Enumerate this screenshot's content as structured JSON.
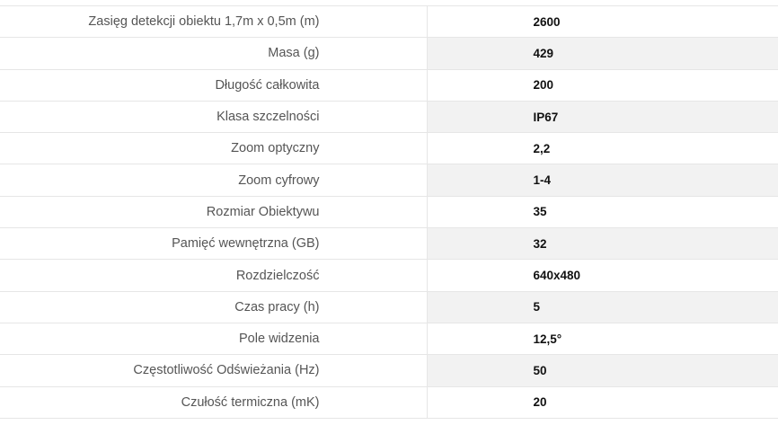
{
  "specs": [
    {
      "label": "Zasięg detekcji obiektu 1,7m x 0,5m (m)",
      "value": "2600"
    },
    {
      "label": "Masa (g)",
      "value": "429"
    },
    {
      "label": "Długość całkowita",
      "value": "200"
    },
    {
      "label": "Klasa szczelności",
      "value": "IP67"
    },
    {
      "label": "Zoom optyczny",
      "value": "2,2"
    },
    {
      "label": "Zoom cyfrowy",
      "value": "1-4"
    },
    {
      "label": "Rozmiar Obiektywu",
      "value": "35"
    },
    {
      "label": "Pamięć wewnętrzna (GB)",
      "value": "32"
    },
    {
      "label": "Rozdzielczość",
      "value": "640x480"
    },
    {
      "label": "Czas pracy (h)",
      "value": "5"
    },
    {
      "label": "Pole widzenia",
      "value": "12,5°"
    },
    {
      "label": "Częstotliwość Odświeżania (Hz)",
      "value": "50"
    },
    {
      "label": "Czułość termiczna (mK)",
      "value": "20"
    }
  ]
}
